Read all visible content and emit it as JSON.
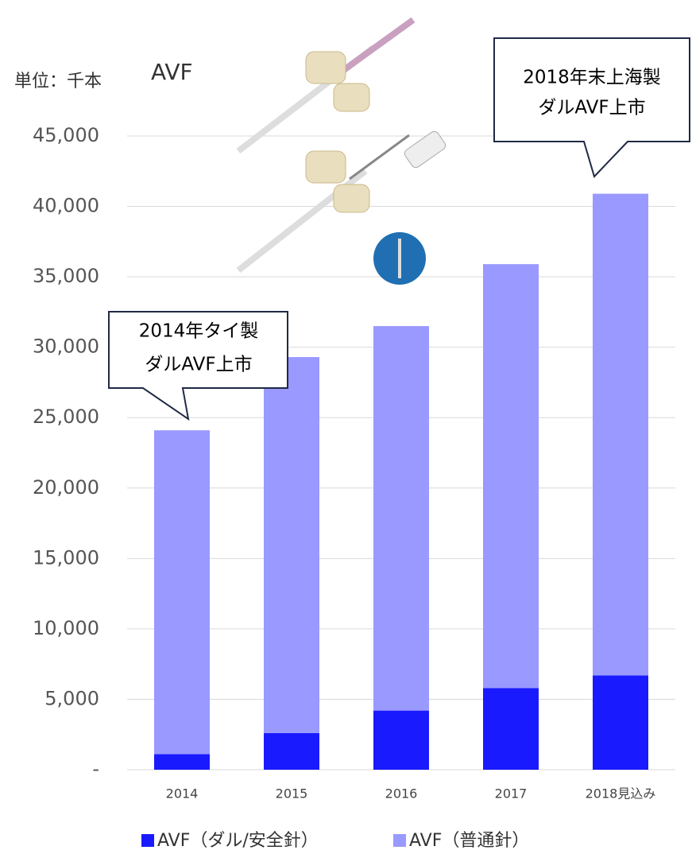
{
  "chart_data": {
    "type": "stacked_bar",
    "title": "AVF",
    "unit_label": "単位：千本",
    "categories": [
      "2014",
      "2015",
      "2016",
      "2017",
      "2018見込み"
    ],
    "series": [
      {
        "name": "AVF（ダル/安全針）",
        "color": "#1a1aff",
        "values": [
          1100,
          2600,
          4200,
          5800,
          6700
        ]
      },
      {
        "name": "AVF（普通針）",
        "color": "#9999ff",
        "values": [
          23000,
          26700,
          27300,
          30100,
          34200
        ]
      }
    ],
    "ylim": [
      0,
      45000
    ],
    "yticks": [
      {
        "value": 0,
        "label": "-"
      },
      {
        "value": 5000,
        "label": "5,000"
      },
      {
        "value": 10000,
        "label": "10,000"
      },
      {
        "value": 15000,
        "label": "15,000"
      },
      {
        "value": 20000,
        "label": "20,000"
      },
      {
        "value": 25000,
        "label": "25,000"
      },
      {
        "value": 30000,
        "label": "30,000"
      },
      {
        "value": 35000,
        "label": "35,000"
      },
      {
        "value": 40000,
        "label": "40,000"
      },
      {
        "value": 45000,
        "label": "45,000"
      }
    ],
    "grid": true,
    "annotations": [
      [
        "2014年タイ製",
        "ダルAVF上市"
      ],
      [
        "2018年末上海製",
        "ダルAVF上市"
      ]
    ]
  }
}
